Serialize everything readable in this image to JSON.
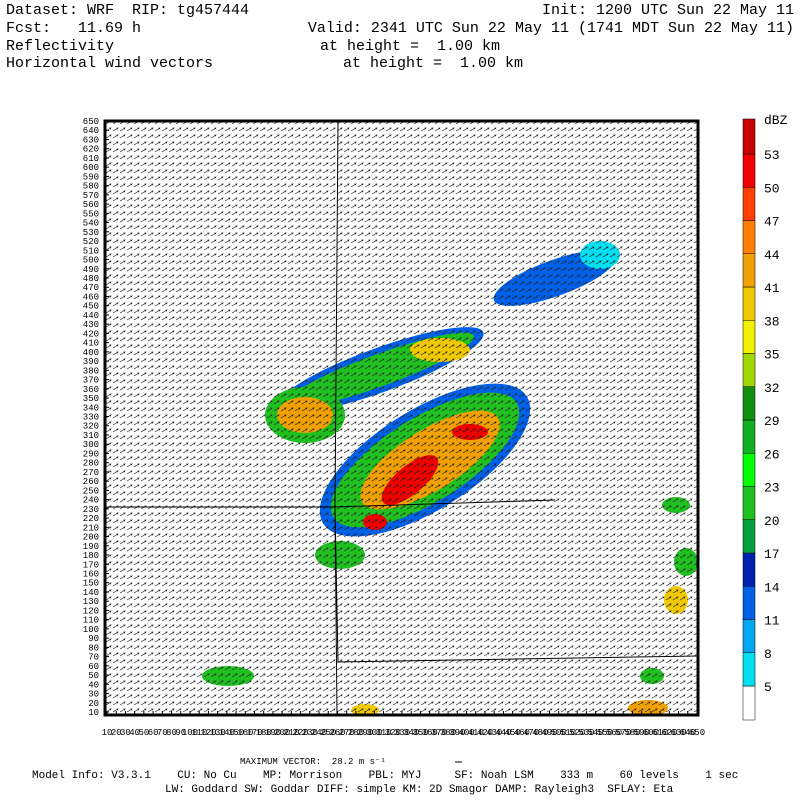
{
  "header": {
    "dataset": "Dataset: WRF  RIP: tg457444",
    "init": "Init: 1200 UTC Sun 22 May 11",
    "fcst": "Fcst:   11.69 h",
    "valid": "Valid: 2341 UTC Sun 22 May 11 (1741 MDT Sun 22 May 11)",
    "field1": "Reflectivity",
    "field1_level": "at height =  1.00 km",
    "field2": "Horizontal wind vectors",
    "field2_level": "at height =  1.00 km"
  },
  "axes": {
    "xticks": [
      10,
      20,
      30,
      40,
      50,
      60,
      70,
      80,
      90,
      100,
      110,
      120,
      130,
      140,
      150,
      160,
      170,
      180,
      190,
      200,
      210,
      220,
      230,
      240,
      250,
      260,
      270,
      280,
      290,
      300,
      310,
      320,
      330,
      340,
      350,
      360,
      370,
      380,
      390,
      400,
      410,
      420,
      430,
      440,
      450,
      460,
      470,
      480,
      490,
      500,
      510,
      520,
      530,
      540,
      550,
      560,
      570,
      580,
      590,
      600,
      610,
      620,
      630,
      640,
      650
    ],
    "yticks": [
      10,
      20,
      30,
      40,
      50,
      60,
      70,
      80,
      90,
      100,
      110,
      120,
      130,
      140,
      150,
      160,
      170,
      180,
      190,
      200,
      210,
      220,
      230,
      240,
      250,
      260,
      270,
      280,
      290,
      300,
      310,
      320,
      330,
      340,
      350,
      360,
      370,
      380,
      390,
      400,
      410,
      420,
      430,
      440,
      450,
      460,
      470,
      480,
      490,
      500,
      510,
      520,
      530,
      540,
      550,
      560,
      570,
      580,
      590,
      600,
      610,
      620,
      630,
      640,
      650
    ],
    "lim": [
      10,
      650
    ]
  },
  "colorbar": {
    "unit": "dBZ",
    "levels": [
      5,
      8,
      11,
      14,
      17,
      20,
      23,
      26,
      29,
      32,
      35,
      38,
      41,
      44,
      47,
      50,
      53
    ],
    "colors": [
      "#ffffff",
      "#00e0f0",
      "#00a8f0",
      "#0060e8",
      "#0020b0",
      "#00a040",
      "#20c020",
      "#00ff00",
      "#10b020",
      "#109010",
      "#a0d800",
      "#f0f000",
      "#f0c800",
      "#f0a000",
      "#ff8000",
      "#ff4000",
      "#f00000",
      "#c80000"
    ]
  },
  "footer": {
    "max_vector": "MAXIMUM VECTOR:  28.2 m s⁻¹",
    "model_info": "Model Info: V3.3.1    CU: No Cu    MP: Morrison    PBL: MYJ     SF: Noah LSM    333 m    60 levels    1 sec",
    "physics": "LW: Goddard SW: Goddar DIFF: simple KM: 2D Smagor DAMP: Rayleigh3  SFLAY: Eta"
  }
}
